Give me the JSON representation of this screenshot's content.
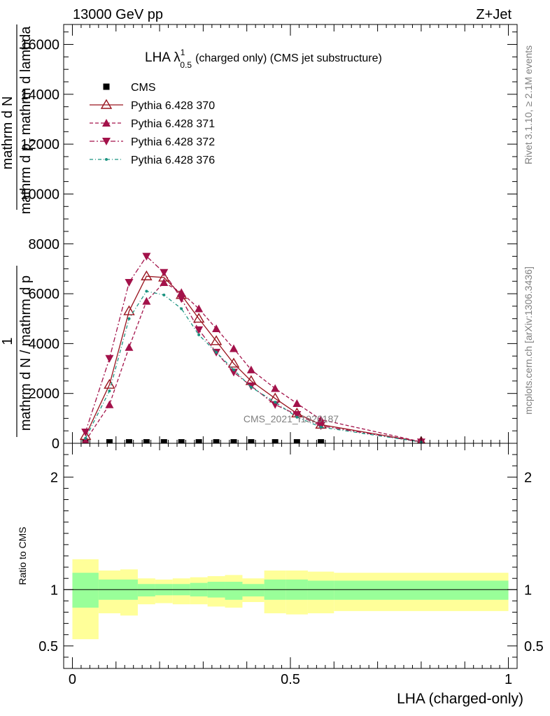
{
  "header": {
    "left": "13000 GeV pp",
    "right": "Z+Jet"
  },
  "title": {
    "main": "LHA λ",
    "sup": "1",
    "sub": "0.5",
    "rest": "(charged only) (CMS jet substructure)"
  },
  "side_labels": {
    "rivet": "Rivet 3.1.10, ≥ 2.1M events",
    "mcplots": "mcplots.cern.ch [arXiv:1306.3436]"
  },
  "watermark": "CMS_2021_I1920187",
  "y_label_main": {
    "num": "1",
    "den": "mathrm d N / mathrm d p",
    "right_num": "mathrm d",
    "right_num2": "N",
    "right_den": "mathrm d p",
    "right_den_sub": "T",
    "right_den2": "mathrm d lambda"
  },
  "y_label_ratio": "Ratio to CMS",
  "x_label": "LHA (charged-only)",
  "colors": {
    "cms": "#000000",
    "p370": "#99141f",
    "p371": "#a3124a",
    "p372": "#a3124a",
    "p376": "#1a9380",
    "band_inner": "#99ff99",
    "band_outer": "#ffff99"
  },
  "chart_data": [
    {
      "type": "scatter",
      "panel": "main",
      "xlim": [
        -0.02,
        1.02
      ],
      "ylim": [
        0,
        16800
      ],
      "y_ticks": [
        0,
        2000,
        4000,
        6000,
        8000,
        10000,
        12000,
        14000,
        16000
      ],
      "y_tick_labels": [
        "0",
        "2000",
        "4000",
        "6000",
        "8000",
        "10000",
        "12000",
        "14000",
        "16000"
      ],
      "x": [
        0.03,
        0.085,
        0.13,
        0.17,
        0.21,
        0.25,
        0.29,
        0.33,
        0.37,
        0.41,
        0.465,
        0.515,
        0.57,
        0.8
      ],
      "series": [
        {
          "name": "CMS",
          "style": "square",
          "values": [
            40,
            40,
            40,
            40,
            40,
            40,
            40,
            40,
            40,
            40,
            40,
            40,
            40,
            null
          ]
        },
        {
          "name": "Pythia 6.428 370",
          "style": "solid-open-triangle",
          "values": [
            300,
            2350,
            5300,
            6700,
            6650,
            5950,
            5000,
            4100,
            3200,
            2500,
            1800,
            1200,
            750,
            60
          ]
        },
        {
          "name": "Pythia 6.428 371",
          "style": "dashed-triangle-up",
          "values": [
            100,
            1550,
            3850,
            5700,
            6450,
            6050,
            5400,
            4600,
            3800,
            2950,
            2200,
            1600,
            950,
            60
          ]
        },
        {
          "name": "Pythia 6.428 372",
          "style": "dashdot-triangle-down",
          "values": [
            450,
            3400,
            6450,
            7500,
            6850,
            5800,
            4550,
            3650,
            2850,
            2300,
            1550,
            1150,
            700,
            50
          ]
        },
        {
          "name": "Pythia 6.428 376",
          "style": "dashdot-dot",
          "values": [
            200,
            2100,
            5000,
            6100,
            5950,
            5400,
            4350,
            3650,
            2950,
            2250,
            1650,
            1050,
            650,
            50
          ]
        }
      ]
    },
    {
      "type": "area",
      "panel": "ratio",
      "ylabel": "Ratio to CMS",
      "xlabel": "LHA (charged-only)",
      "xlim": [
        -0.02,
        1.02
      ],
      "ylim": [
        0.3,
        2.3
      ],
      "y_ticks": [
        0.5,
        1,
        2
      ],
      "y_tick_labels": [
        "0.5",
        "1",
        "2"
      ],
      "x_ticks": [
        0,
        0.5,
        1
      ],
      "x_tick_labels": [
        "0",
        "0.5",
        "1"
      ],
      "bin_edges": [
        0,
        0.06,
        0.11,
        0.15,
        0.19,
        0.23,
        0.27,
        0.31,
        0.35,
        0.39,
        0.44,
        0.49,
        0.54,
        0.6,
        1.0
      ],
      "inner_low": [
        0.84,
        0.91,
        0.91,
        0.94,
        0.95,
        0.95,
        0.94,
        0.93,
        0.91,
        0.94,
        0.91,
        0.91,
        0.91,
        0.91
      ],
      "inner_high": [
        1.15,
        1.09,
        1.09,
        1.05,
        1.05,
        1.05,
        1.06,
        1.07,
        1.07,
        1.05,
        1.09,
        1.09,
        1.08,
        1.08
      ],
      "outer_low": [
        0.56,
        0.79,
        0.77,
        0.87,
        0.88,
        0.87,
        0.87,
        0.85,
        0.84,
        0.89,
        0.79,
        0.78,
        0.79,
        0.81
      ],
      "outer_high": [
        1.27,
        1.17,
        1.18,
        1.1,
        1.09,
        1.1,
        1.11,
        1.12,
        1.13,
        1.1,
        1.17,
        1.17,
        1.16,
        1.15
      ],
      "reference": 1
    }
  ]
}
